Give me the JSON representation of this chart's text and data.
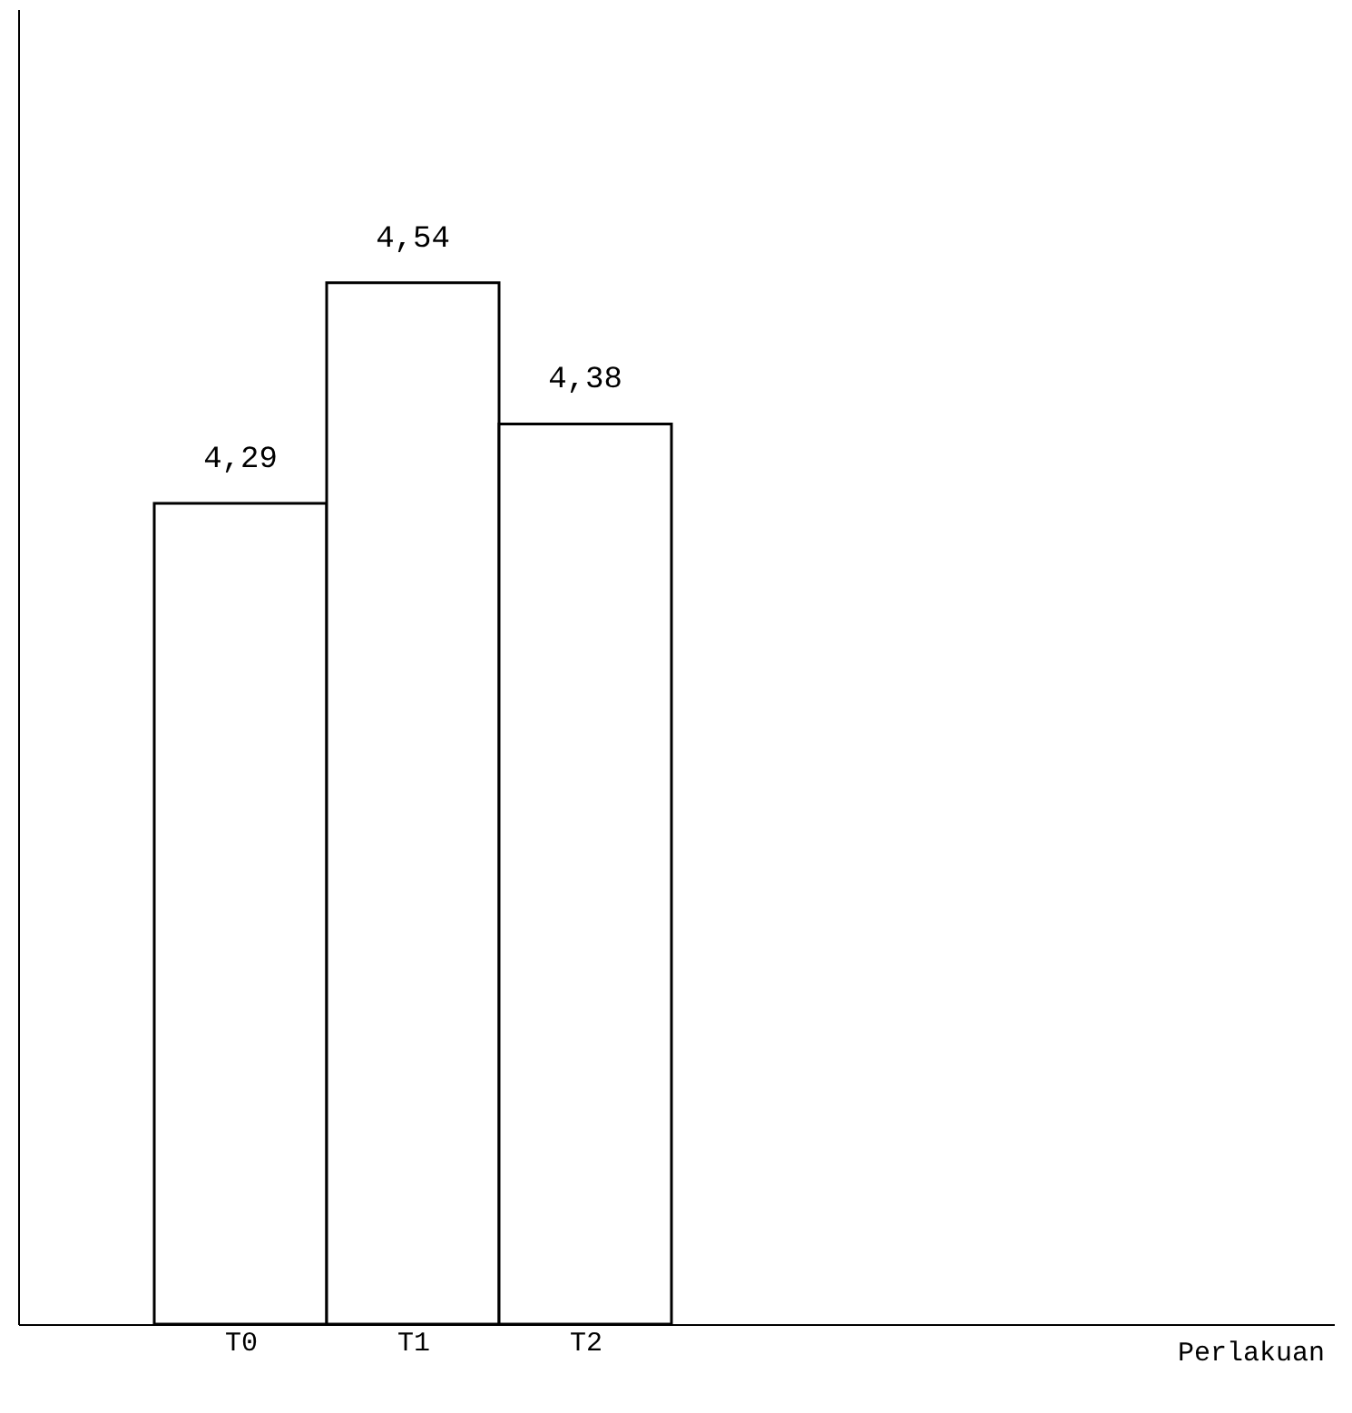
{
  "chart_data": {
    "type": "bar",
    "annotations": [
      "Perlakuan"
    ],
    "categories": [
      "T0",
      "T1",
      "T2"
    ],
    "values": [
      4.29,
      4.54,
      4.38
    ],
    "value_labels": [
      "4,29",
      "4,54",
      "4,38"
    ],
    "color": "#ffffff",
    "ylim": [
      3.36,
      4.85
    ],
    "tick_labels": "x",
    "grid": false
  }
}
